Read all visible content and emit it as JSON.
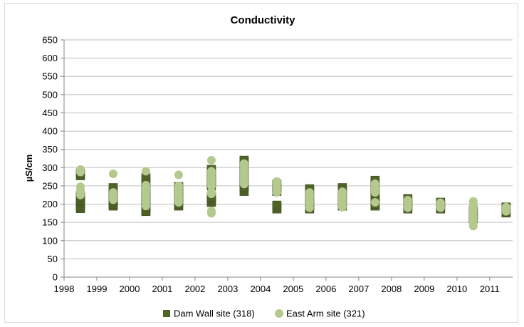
{
  "chart_data": {
    "type": "scatter",
    "title": "Conductivity",
    "xlabel": "",
    "ylabel": "µS/cm",
    "xlim": [
      1998,
      2011.7
    ],
    "ylim": [
      0,
      650
    ],
    "y_ticks": [
      0,
      50,
      100,
      150,
      200,
      250,
      300,
      350,
      400,
      450,
      500,
      550,
      600,
      650
    ],
    "x_ticks": [
      1998,
      1999,
      2000,
      2001,
      2002,
      2003,
      2004,
      2005,
      2006,
      2007,
      2008,
      2009,
      2010,
      2011
    ],
    "grid": "horizontal",
    "legend_position": "bottom",
    "series": [
      {
        "name": "Dam Wall site (318)",
        "marker": "square",
        "color": "#4f6228",
        "points": [
          [
            1998.5,
            188
          ],
          [
            1998.5,
            193
          ],
          [
            1998.5,
            198
          ],
          [
            1998.5,
            203
          ],
          [
            1998.5,
            208
          ],
          [
            1998.5,
            213
          ],
          [
            1998.5,
            218
          ],
          [
            1998.5,
            223
          ],
          [
            1998.5,
            278
          ],
          [
            1998.5,
            285
          ],
          [
            1999.5,
            195
          ],
          [
            1999.5,
            200
          ],
          [
            1999.5,
            205
          ],
          [
            1999.5,
            210
          ],
          [
            1999.5,
            215
          ],
          [
            1999.5,
            225
          ],
          [
            1999.5,
            235
          ],
          [
            1999.5,
            245
          ],
          [
            2000.5,
            180
          ],
          [
            2000.5,
            185
          ],
          [
            2000.5,
            190
          ],
          [
            2000.5,
            200
          ],
          [
            2000.5,
            210
          ],
          [
            2000.5,
            220
          ],
          [
            2000.5,
            230
          ],
          [
            2000.5,
            245
          ],
          [
            2000.5,
            260
          ],
          [
            2000.5,
            272
          ],
          [
            2001.5,
            195
          ],
          [
            2001.5,
            200
          ],
          [
            2001.5,
            210
          ],
          [
            2001.5,
            220
          ],
          [
            2001.5,
            230
          ],
          [
            2001.5,
            240
          ],
          [
            2001.5,
            248
          ],
          [
            2002.5,
            205
          ],
          [
            2002.5,
            210
          ],
          [
            2002.5,
            215
          ],
          [
            2002.5,
            220
          ],
          [
            2002.5,
            250
          ],
          [
            2002.5,
            260
          ],
          [
            2002.5,
            268
          ],
          [
            2002.5,
            275
          ],
          [
            2002.5,
            285
          ],
          [
            2002.5,
            295
          ],
          [
            2003.5,
            235
          ],
          [
            2003.5,
            245
          ],
          [
            2003.5,
            255
          ],
          [
            2003.5,
            265
          ],
          [
            2003.5,
            280
          ],
          [
            2003.5,
            290
          ],
          [
            2003.5,
            305
          ],
          [
            2003.5,
            315
          ],
          [
            2003.5,
            320
          ],
          [
            2004.5,
            187
          ],
          [
            2004.5,
            192
          ],
          [
            2004.5,
            197
          ],
          [
            2004.5,
            235
          ],
          [
            2004.5,
            245
          ],
          [
            2004.5,
            255
          ],
          [
            2005.5,
            187
          ],
          [
            2005.5,
            192
          ],
          [
            2005.5,
            197
          ],
          [
            2005.5,
            205
          ],
          [
            2005.5,
            220
          ],
          [
            2005.5,
            235
          ],
          [
            2005.5,
            242
          ],
          [
            2006.5,
            195
          ],
          [
            2006.5,
            205
          ],
          [
            2006.5,
            215
          ],
          [
            2006.5,
            225
          ],
          [
            2006.5,
            235
          ],
          [
            2006.5,
            245
          ],
          [
            2007.5,
            195
          ],
          [
            2007.5,
            200
          ],
          [
            2007.5,
            210
          ],
          [
            2007.5,
            215
          ],
          [
            2007.5,
            220
          ],
          [
            2007.5,
            230
          ],
          [
            2007.5,
            245
          ],
          [
            2007.5,
            255
          ],
          [
            2007.5,
            265
          ],
          [
            2008.5,
            187
          ],
          [
            2008.5,
            192
          ],
          [
            2008.5,
            200
          ],
          [
            2008.5,
            208
          ],
          [
            2008.5,
            215
          ],
          [
            2009.5,
            187
          ],
          [
            2009.5,
            193
          ],
          [
            2009.5,
            200
          ],
          [
            2009.5,
            205
          ],
          [
            2010.5,
            160
          ],
          [
            2010.5,
            168
          ],
          [
            2010.5,
            175
          ],
          [
            2010.5,
            183
          ],
          [
            2011.5,
            176
          ],
          [
            2011.5,
            180
          ],
          [
            2011.5,
            186
          ],
          [
            2011.5,
            192
          ]
        ]
      },
      {
        "name": "East Arm site (321)",
        "marker": "circle",
        "color": "#b4c98d",
        "points": [
          [
            1998.5,
            225
          ],
          [
            1998.5,
            233
          ],
          [
            1998.5,
            240
          ],
          [
            1998.5,
            248
          ],
          [
            1998.5,
            288
          ],
          [
            1998.5,
            295
          ],
          [
            1999.5,
            212
          ],
          [
            1999.5,
            218
          ],
          [
            1999.5,
            225
          ],
          [
            1999.5,
            232
          ],
          [
            1999.5,
            283
          ],
          [
            2000.5,
            195
          ],
          [
            2000.5,
            205
          ],
          [
            2000.5,
            213
          ],
          [
            2000.5,
            220
          ],
          [
            2000.5,
            228
          ],
          [
            2000.5,
            236
          ],
          [
            2000.5,
            244
          ],
          [
            2000.5,
            252
          ],
          [
            2000.5,
            290
          ],
          [
            2001.5,
            205
          ],
          [
            2001.5,
            212
          ],
          [
            2001.5,
            218
          ],
          [
            2001.5,
            226
          ],
          [
            2001.5,
            234
          ],
          [
            2001.5,
            242
          ],
          [
            2001.5,
            250
          ],
          [
            2001.5,
            280
          ],
          [
            2002.5,
            175
          ],
          [
            2002.5,
            181
          ],
          [
            2002.5,
            228
          ],
          [
            2002.5,
            234
          ],
          [
            2002.5,
            250
          ],
          [
            2002.5,
            258
          ],
          [
            2002.5,
            266
          ],
          [
            2002.5,
            274
          ],
          [
            2002.5,
            282
          ],
          [
            2002.5,
            290
          ],
          [
            2002.5,
            320
          ],
          [
            2003.5,
            255
          ],
          [
            2003.5,
            263
          ],
          [
            2003.5,
            271
          ],
          [
            2003.5,
            279
          ],
          [
            2003.5,
            287
          ],
          [
            2003.5,
            295
          ],
          [
            2003.5,
            303
          ],
          [
            2003.5,
            311
          ],
          [
            2004.5,
            232
          ],
          [
            2004.5,
            240
          ],
          [
            2004.5,
            248
          ],
          [
            2004.5,
            256
          ],
          [
            2004.5,
            262
          ],
          [
            2005.5,
            190
          ],
          [
            2005.5,
            200
          ],
          [
            2005.5,
            208
          ],
          [
            2005.5,
            216
          ],
          [
            2005.5,
            224
          ],
          [
            2005.5,
            232
          ],
          [
            2006.5,
            192
          ],
          [
            2006.5,
            199
          ],
          [
            2006.5,
            206
          ],
          [
            2006.5,
            213
          ],
          [
            2006.5,
            220
          ],
          [
            2006.5,
            227
          ],
          [
            2006.5,
            234
          ],
          [
            2007.5,
            205
          ],
          [
            2007.5,
            232
          ],
          [
            2007.5,
            240
          ],
          [
            2007.5,
            248
          ],
          [
            2007.5,
            256
          ],
          [
            2008.5,
            190
          ],
          [
            2008.5,
            197
          ],
          [
            2008.5,
            204
          ],
          [
            2008.5,
            211
          ],
          [
            2009.5,
            190
          ],
          [
            2009.5,
            197
          ],
          [
            2009.5,
            204
          ],
          [
            2010.5,
            140
          ],
          [
            2010.5,
            148
          ],
          [
            2010.5,
            157
          ],
          [
            2010.5,
            166
          ],
          [
            2010.5,
            175
          ],
          [
            2010.5,
            183
          ],
          [
            2010.5,
            191
          ],
          [
            2010.5,
            200
          ],
          [
            2010.5,
            208
          ],
          [
            2011.5,
            180
          ],
          [
            2011.5,
            186
          ],
          [
            2011.5,
            192
          ]
        ]
      }
    ]
  }
}
